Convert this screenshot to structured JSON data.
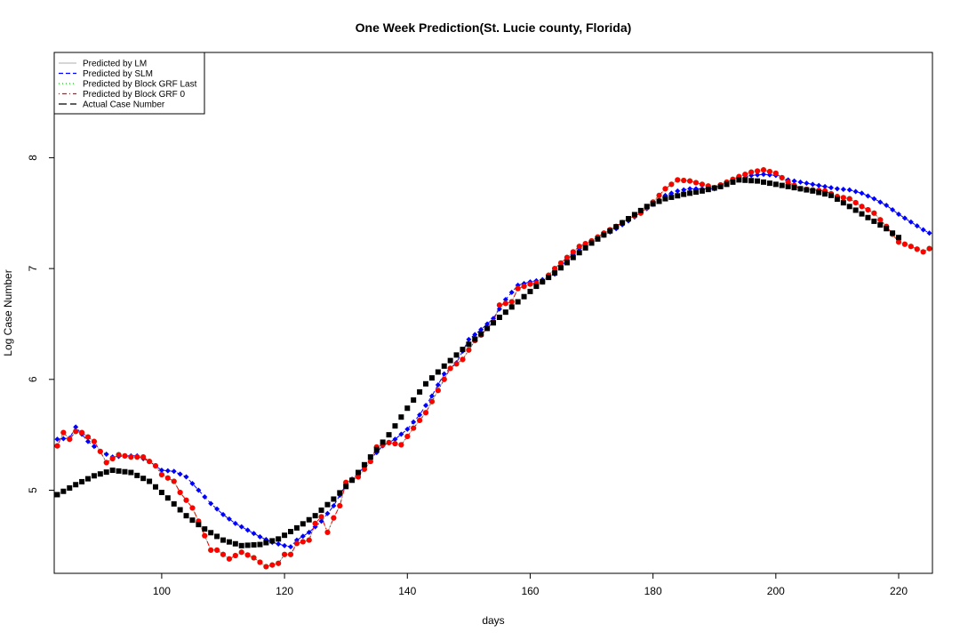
{
  "chart_data": {
    "type": "line",
    "title": "One Week Prediction(St. Lucie county, Florida)",
    "xlabel": "days",
    "ylabel": "Log Case Number",
    "xlim": [
      82.5,
      225.5
    ],
    "ylim": [
      4.25,
      8.95
    ],
    "x_ticks": [
      100,
      120,
      140,
      160,
      180,
      200,
      220
    ],
    "y_ticks": [
      5,
      6,
      7,
      8
    ],
    "grid": false,
    "legend_position": "top-left",
    "legend": [
      {
        "label": "Predicted by LM",
        "color": "#BEBEBE",
        "dash": "solid"
      },
      {
        "label": "Predicted by SLM",
        "color": "#0000FF",
        "dash": "dashed"
      },
      {
        "label": "Predicted by Block GRF Last",
        "color": "#00CD00",
        "dash": "dotted"
      },
      {
        "label": "Predicted by Block GRF 0",
        "color": "#FF0000",
        "dash": "dotdash"
      },
      {
        "label": "Actual Case Number",
        "color": "#000000",
        "dash": "longdash"
      }
    ],
    "series_styles": {
      "lm": {
        "color": "#BEBEBE",
        "marker": "circle"
      },
      "slm": {
        "color": "#0000FF",
        "marker": "diamond"
      },
      "grf_last": {
        "color": "#00CD00",
        "marker": "circle"
      },
      "grf0": {
        "color": "#FF0000",
        "marker": "circle"
      },
      "actual": {
        "color": "#000000",
        "marker": "square"
      }
    },
    "anchors": {
      "actual": [
        [
          83,
          4.96
        ],
        [
          86,
          5.05
        ],
        [
          89,
          5.13
        ],
        [
          92,
          5.18
        ],
        [
          95,
          5.16
        ],
        [
          98,
          5.08
        ],
        [
          101,
          4.93
        ],
        [
          104,
          4.77
        ],
        [
          107,
          4.65
        ],
        [
          110,
          4.55
        ],
        [
          113,
          4.5
        ],
        [
          116,
          4.51
        ],
        [
          119,
          4.56
        ],
        [
          122,
          4.66
        ],
        [
          125,
          4.77
        ],
        [
          128,
          4.92
        ],
        [
          131,
          5.09
        ],
        [
          134,
          5.3
        ],
        [
          137,
          5.5
        ],
        [
          140,
          5.74
        ],
        [
          143,
          5.96
        ],
        [
          146,
          6.12
        ],
        [
          149,
          6.27
        ],
        [
          152,
          6.41
        ],
        [
          155,
          6.56
        ],
        [
          158,
          6.7
        ],
        [
          161,
          6.84
        ],
        [
          164,
          6.96
        ],
        [
          167,
          7.1
        ],
        [
          170,
          7.23
        ],
        [
          173,
          7.34
        ],
        [
          176,
          7.45
        ],
        [
          179,
          7.56
        ],
        [
          182,
          7.63
        ],
        [
          185,
          7.67
        ],
        [
          188,
          7.7
        ],
        [
          191,
          7.74
        ],
        [
          194,
          7.8
        ],
        [
          197,
          7.79
        ],
        [
          200,
          7.76
        ],
        [
          203,
          7.73
        ],
        [
          206,
          7.7
        ],
        [
          209,
          7.66
        ],
        [
          212,
          7.56
        ],
        [
          215,
          7.46
        ],
        [
          218,
          7.36
        ],
        [
          220,
          7.28
        ]
      ],
      "lm": [
        [
          83,
          5.4
        ],
        [
          84,
          5.52
        ],
        [
          85,
          5.46
        ],
        [
          86,
          5.53
        ],
        [
          87,
          5.52
        ],
        [
          89,
          5.44
        ],
        [
          90,
          5.35
        ],
        [
          91,
          5.25
        ],
        [
          93,
          5.32
        ],
        [
          95,
          5.3
        ],
        [
          97,
          5.3
        ],
        [
          99,
          5.22
        ],
        [
          100,
          5.14
        ],
        [
          102,
          5.08
        ],
        [
          103,
          4.98
        ],
        [
          105,
          4.84
        ],
        [
          106,
          4.72
        ],
        [
          108,
          4.46
        ],
        [
          109,
          4.46
        ],
        [
          111,
          4.38
        ],
        [
          113,
          4.44
        ],
        [
          115,
          4.39
        ],
        [
          117,
          4.31
        ],
        [
          119,
          4.34
        ],
        [
          120,
          4.42
        ],
        [
          121,
          4.42
        ],
        [
          122,
          4.52
        ],
        [
          124,
          4.55
        ],
        [
          125,
          4.7
        ],
        [
          126,
          4.76
        ],
        [
          127,
          4.62
        ],
        [
          128,
          4.75
        ],
        [
          129,
          4.86
        ],
        [
          130,
          5.07
        ],
        [
          132,
          5.12
        ],
        [
          134,
          5.26
        ],
        [
          135,
          5.39
        ],
        [
          137,
          5.43
        ],
        [
          139,
          5.41
        ],
        [
          141,
          5.56
        ],
        [
          143,
          5.7
        ],
        [
          145,
          5.9
        ],
        [
          147,
          6.1
        ],
        [
          149,
          6.18
        ],
        [
          151,
          6.35
        ],
        [
          152,
          6.4
        ],
        [
          154,
          6.52
        ],
        [
          155,
          6.67
        ],
        [
          157,
          6.7
        ],
        [
          158,
          6.82
        ],
        [
          160,
          6.86
        ],
        [
          162,
          6.88
        ],
        [
          164,
          7.0
        ],
        [
          166,
          7.1
        ],
        [
          168,
          7.2
        ],
        [
          170,
          7.25
        ],
        [
          172,
          7.32
        ],
        [
          174,
          7.38
        ],
        [
          176,
          7.45
        ],
        [
          178,
          7.5
        ],
        [
          180,
          7.6
        ],
        [
          182,
          7.72
        ],
        [
          184,
          7.8
        ],
        [
          186,
          7.79
        ],
        [
          188,
          7.76
        ],
        [
          190,
          7.73
        ],
        [
          192,
          7.78
        ],
        [
          194,
          7.83
        ],
        [
          196,
          7.87
        ],
        [
          198,
          7.89
        ],
        [
          200,
          7.86
        ],
        [
          202,
          7.78
        ],
        [
          204,
          7.72
        ],
        [
          206,
          7.71
        ],
        [
          208,
          7.7
        ],
        [
          210,
          7.65
        ],
        [
          212,
          7.63
        ],
        [
          214,
          7.56
        ],
        [
          216,
          7.5
        ],
        [
          218,
          7.38
        ],
        [
          220,
          7.24
        ],
        [
          222,
          7.2
        ],
        [
          224,
          7.15
        ],
        [
          225,
          7.18
        ]
      ],
      "slm": [
        [
          83,
          5.46
        ],
        [
          85,
          5.47
        ],
        [
          86,
          5.57
        ],
        [
          88,
          5.44
        ],
        [
          90,
          5.35
        ],
        [
          92,
          5.3
        ],
        [
          94,
          5.31
        ],
        [
          96,
          5.31
        ],
        [
          98,
          5.26
        ],
        [
          100,
          5.18
        ],
        [
          102,
          5.17
        ],
        [
          104,
          5.12
        ],
        [
          106,
          5.0
        ],
        [
          108,
          4.88
        ],
        [
          110,
          4.78
        ],
        [
          112,
          4.7
        ],
        [
          114,
          4.64
        ],
        [
          116,
          4.58
        ],
        [
          118,
          4.53
        ],
        [
          120,
          4.5
        ],
        [
          121,
          4.49
        ],
        [
          122,
          4.55
        ],
        [
          124,
          4.62
        ],
        [
          126,
          4.72
        ],
        [
          128,
          4.86
        ],
        [
          130,
          5.05
        ],
        [
          132,
          5.15
        ],
        [
          134,
          5.28
        ],
        [
          136,
          5.4
        ],
        [
          138,
          5.46
        ],
        [
          140,
          5.55
        ],
        [
          142,
          5.68
        ],
        [
          144,
          5.85
        ],
        [
          146,
          6.05
        ],
        [
          148,
          6.15
        ],
        [
          150,
          6.36
        ],
        [
          152,
          6.45
        ],
        [
          154,
          6.55
        ],
        [
          156,
          6.72
        ],
        [
          158,
          6.85
        ],
        [
          160,
          6.88
        ],
        [
          162,
          6.9
        ],
        [
          164,
          6.95
        ],
        [
          166,
          7.08
        ],
        [
          168,
          7.18
        ],
        [
          170,
          7.24
        ],
        [
          172,
          7.3
        ],
        [
          174,
          7.36
        ],
        [
          176,
          7.43
        ],
        [
          178,
          7.5
        ],
        [
          180,
          7.58
        ],
        [
          182,
          7.66
        ],
        [
          184,
          7.7
        ],
        [
          186,
          7.72
        ],
        [
          188,
          7.72
        ],
        [
          190,
          7.72
        ],
        [
          192,
          7.76
        ],
        [
          194,
          7.8
        ],
        [
          196,
          7.84
        ],
        [
          198,
          7.85
        ],
        [
          200,
          7.84
        ],
        [
          202,
          7.8
        ],
        [
          204,
          7.78
        ],
        [
          206,
          7.76
        ],
        [
          208,
          7.74
        ],
        [
          210,
          7.72
        ],
        [
          212,
          7.71
        ],
        [
          214,
          7.68
        ],
        [
          216,
          7.63
        ],
        [
          218,
          7.57
        ],
        [
          220,
          7.49
        ],
        [
          222,
          7.42
        ],
        [
          224,
          7.35
        ],
        [
          225,
          7.32
        ]
      ]
    },
    "grf_last_offset": 0.0,
    "grf0_offset": 0.0
  }
}
